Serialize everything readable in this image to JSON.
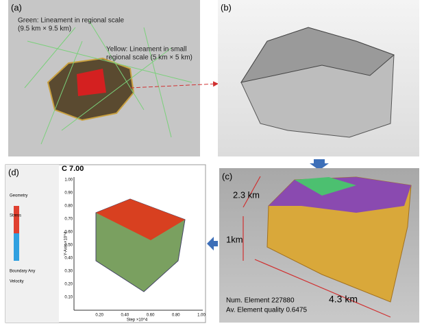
{
  "panels": [
    {
      "label": "(a)",
      "texts": [
        "Green: Lineament in regional scale",
        "(9.5 km × 9.5 km)",
        "Yellow: Lineament in small",
        "regional scale (5 km × 5 km)"
      ]
    },
    {
      "label": "(b)",
      "texts": []
    },
    {
      "label": "(c)",
      "texts": [
        "2.3 km",
        "1km",
        "4.3 km",
        "Num. Element 227880",
        "Av. Element quality 0.6475"
      ]
    },
    {
      "label": "(d)",
      "texts": [
        "C 7.00",
        "Geometry",
        "Stress",
        "Boundary Any",
        "Velocity"
      ],
      "plot": {
        "y_axis_label": "Y-Axis ×10^4",
        "x_axis_label": "Step ×10^4",
        "yticks": [
          "0.10",
          "0.20",
          "0.30",
          "0.40",
          "0.50",
          "0.60",
          "0.70",
          "0.80",
          "0.90",
          "1.00"
        ],
        "xticks": [
          "0.20",
          "0.40",
          "0.60",
          "0.80",
          "1.00"
        ]
      }
    }
  ]
}
